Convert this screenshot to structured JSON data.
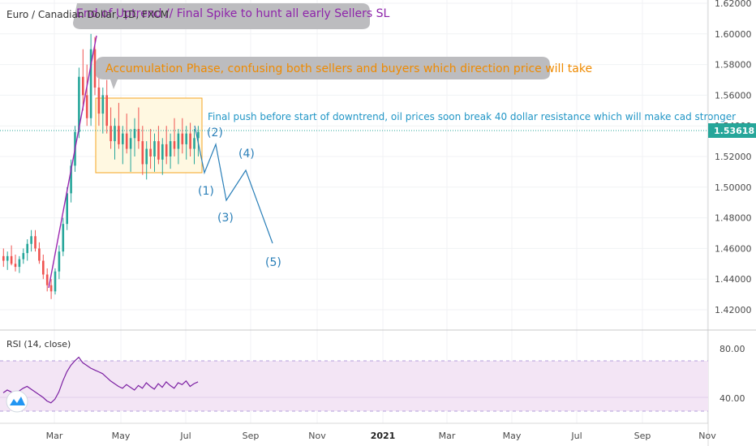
{
  "symbol_title": "Euro / Canadian Dollar, 1D, FXCM",
  "callouts": {
    "end_uptrend": "End of Uptrend // Final Spike to hunt all early Sellers SL",
    "accumulation": "Accumulation Phase, confusing both sellers and buyers which direction price will take",
    "final_push": "Final push before start of downtrend, oil prices soon break 40 dollar resistance which will make cad stronger"
  },
  "waves": {
    "w1": "(1)",
    "w2": "(2)",
    "w3": "(3)",
    "w4": "(4)",
    "w5": "(5)"
  },
  "price_axis": {
    "ticks": [
      "1.62000",
      "1.60000",
      "1.58000",
      "1.56000",
      "1.54000",
      "1.52000",
      "1.50000",
      "1.48000",
      "1.46000",
      "1.44000",
      "1.42000"
    ],
    "current_price": "1.53618"
  },
  "rsi": {
    "label": "RSI (14, close)",
    "ticks": [
      "80.00",
      "40.00"
    ]
  },
  "time_axis": [
    "Mar",
    "May",
    "Jul",
    "Sep",
    "Nov",
    "2021",
    "Mar",
    "May",
    "Jul",
    "Sep",
    "Nov"
  ],
  "colors": {
    "up": "#26a69a",
    "down": "#ef5350",
    "trendline": "#9c27b0",
    "box_fill": "#fff8e1",
    "box_stroke": "#f5a623",
    "projection": "#2a7fb8",
    "rsi_line": "#7b1fa2",
    "rsi_band": "#f3e5f5",
    "price_tag": "#26a69a"
  },
  "chart_data": {
    "type": "candlestick",
    "title": "Euro / Canadian Dollar, 1D, FXCM",
    "ylim": [
      1.41,
      1.62
    ],
    "candles": [
      [
        1.455,
        1.46,
        1.448,
        1.452
      ],
      [
        1.452,
        1.458,
        1.446,
        1.455
      ],
      [
        1.455,
        1.462,
        1.449,
        1.45
      ],
      [
        1.45,
        1.456,
        1.445,
        1.448
      ],
      [
        1.448,
        1.455,
        1.444,
        1.453
      ],
      [
        1.453,
        1.46,
        1.45,
        1.457
      ],
      [
        1.457,
        1.466,
        1.452,
        1.463
      ],
      [
        1.463,
        1.472,
        1.458,
        1.468
      ],
      [
        1.468,
        1.472,
        1.458,
        1.46
      ],
      [
        1.46,
        1.464,
        1.45,
        1.452
      ],
      [
        1.452,
        1.456,
        1.44,
        1.443
      ],
      [
        1.443,
        1.447,
        1.432,
        1.436
      ],
      [
        1.436,
        1.44,
        1.427,
        1.432
      ],
      [
        1.432,
        1.447,
        1.43,
        1.445
      ],
      [
        1.445,
        1.462,
        1.44,
        1.458
      ],
      [
        1.458,
        1.48,
        1.455,
        1.476
      ],
      [
        1.476,
        1.5,
        1.472,
        1.496
      ],
      [
        1.496,
        1.518,
        1.49,
        1.514
      ],
      [
        1.514,
        1.54,
        1.51,
        1.536
      ],
      [
        1.536,
        1.578,
        1.532,
        1.572
      ],
      [
        1.572,
        1.59,
        1.55,
        1.56
      ],
      [
        1.56,
        1.58,
        1.54,
        1.545
      ],
      [
        1.545,
        1.6,
        1.54,
        1.59
      ],
      [
        1.59,
        1.598,
        1.56,
        1.565
      ],
      [
        1.565,
        1.575,
        1.54,
        1.548
      ],
      [
        1.548,
        1.565,
        1.535,
        1.56
      ],
      [
        1.56,
        1.57,
        1.535,
        1.54
      ],
      [
        1.54,
        1.552,
        1.525,
        1.53
      ],
      [
        1.53,
        1.545,
        1.518,
        1.54
      ],
      [
        1.54,
        1.555,
        1.525,
        1.528
      ],
      [
        1.528,
        1.54,
        1.515,
        1.535
      ],
      [
        1.535,
        1.548,
        1.522,
        1.525
      ],
      [
        1.525,
        1.538,
        1.51,
        1.532
      ],
      [
        1.532,
        1.545,
        1.52,
        1.538
      ],
      [
        1.538,
        1.552,
        1.525,
        1.53
      ],
      [
        1.53,
        1.54,
        1.508,
        1.515
      ],
      [
        1.515,
        1.53,
        1.505,
        1.525
      ],
      [
        1.525,
        1.538,
        1.512,
        1.52
      ],
      [
        1.52,
        1.535,
        1.51,
        1.53
      ],
      [
        1.53,
        1.54,
        1.515,
        1.518
      ],
      [
        1.518,
        1.532,
        1.508,
        1.528
      ],
      [
        1.528,
        1.54,
        1.515,
        1.52
      ],
      [
        1.52,
        1.535,
        1.512,
        1.53
      ],
      [
        1.53,
        1.545,
        1.52,
        1.525
      ],
      [
        1.525,
        1.538,
        1.515,
        1.535
      ],
      [
        1.535,
        1.545,
        1.522,
        1.528
      ],
      [
        1.528,
        1.54,
        1.518,
        1.535
      ],
      [
        1.535,
        1.542,
        1.52,
        1.525
      ],
      [
        1.525,
        1.538,
        1.515,
        1.532
      ],
      [
        1.532,
        1.54,
        1.52,
        1.536
      ]
    ],
    "trendline": {
      "from": [
        1.433,
        "candle 12"
      ],
      "to": [
        1.598,
        "candle 27"
      ]
    },
    "accumulation_box": {
      "price_high": 1.558,
      "price_low": 1.509
    },
    "projection_path": [
      1.538,
      1.512,
      1.526,
      1.491,
      1.512,
      1.463
    ],
    "rsi_values": [
      45,
      48,
      46,
      44,
      47,
      50,
      52,
      49,
      46,
      43,
      40,
      36,
      34,
      38,
      46,
      58,
      68,
      75,
      80,
      84,
      78,
      75,
      72,
      70,
      68,
      66,
      62,
      58,
      55,
      52,
      50,
      54,
      51,
      48,
      53,
      50,
      56,
      52,
      49,
      55,
      51,
      57,
      53,
      50,
      56,
      54,
      58,
      52,
      55,
      57
    ]
  }
}
